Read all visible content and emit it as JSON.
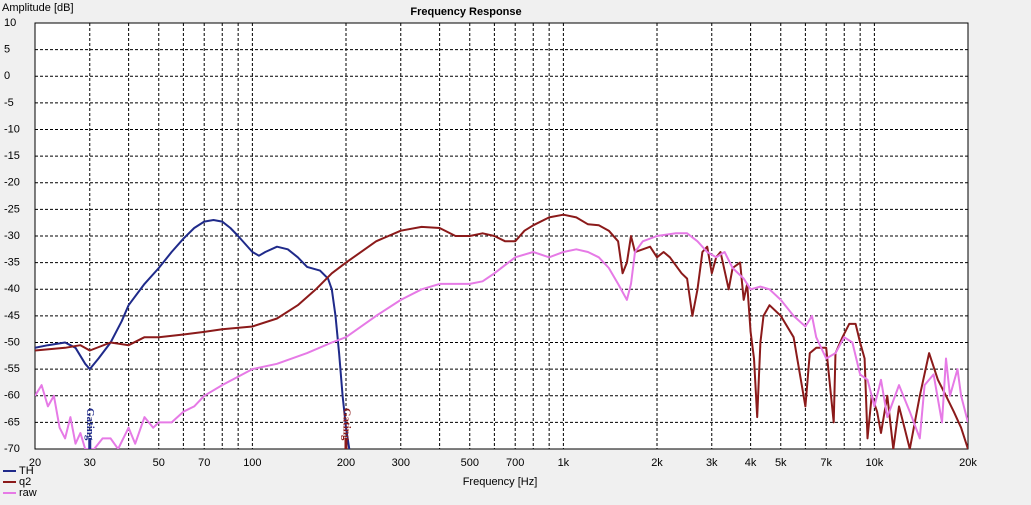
{
  "chart_data": {
    "type": "line",
    "title": "Frequency Response",
    "y_label": "Amplitude [dB]",
    "x_label": "Frequency [Hz]",
    "log_x": true,
    "grid": true,
    "legend": "bottom-left",
    "xlim": [
      20,
      20000
    ],
    "ylim": [
      -70,
      10
    ],
    "yticks": [
      10,
      5,
      0,
      -5,
      -10,
      -15,
      -20,
      -25,
      -30,
      -35,
      -40,
      -45,
      -50,
      -55,
      -60,
      -65,
      -70
    ],
    "xticks": [
      20,
      30,
      50,
      70,
      100,
      200,
      300,
      500,
      700,
      {
        "value": 1000,
        "label": "1k"
      },
      {
        "value": 2000,
        "label": "2k"
      },
      {
        "value": 3000,
        "label": "3k"
      },
      {
        "value": 4000,
        "label": "4k"
      },
      {
        "value": 5000,
        "label": "5k"
      },
      {
        "value": 7000,
        "label": "7k"
      },
      {
        "value": 10000,
        "label": "10k"
      },
      {
        "value": 20000,
        "label": "20k"
      }
    ],
    "xminor_grid": [
      40,
      60,
      80,
      90,
      400,
      600,
      800,
      900,
      6000,
      8000,
      9000
    ],
    "annotations": [
      {
        "text": "Gating",
        "x": 30,
        "color": "#1f2a8a"
      },
      {
        "text": "Gating",
        "x": 200,
        "color": "#8b1a1a"
      }
    ],
    "series": [
      {
        "name": "TH",
        "color": "#1f2a8a",
        "x": [
          20,
          22,
          25,
          27,
          29,
          30,
          32,
          35,
          38,
          40,
          45,
          50,
          55,
          60,
          65,
          70,
          75,
          80,
          85,
          90,
          100,
          105,
          110,
          120,
          130,
          140,
          150,
          165,
          175,
          180,
          185,
          190,
          195,
          200,
          205
        ],
        "values": [
          -51,
          -50.5,
          -50,
          -51,
          -54,
          -55,
          -53,
          -50,
          -46,
          -43,
          -39,
          -36,
          -33,
          -30.5,
          -28.5,
          -27.3,
          -27,
          -27.3,
          -28.5,
          -30,
          -33,
          -33.7,
          -33,
          -32,
          -32.5,
          -34,
          -35.8,
          -36.5,
          -38,
          -40,
          -45,
          -52,
          -60,
          -66,
          -70
        ]
      },
      {
        "name": "q2",
        "color": "#8b1a1a",
        "x": [
          20,
          25,
          28,
          30,
          35,
          40,
          45,
          50,
          60,
          70,
          80,
          100,
          120,
          140,
          160,
          180,
          200,
          250,
          300,
          350,
          400,
          450,
          500,
          550,
          600,
          650,
          700,
          750,
          800,
          900,
          1000,
          1100,
          1200,
          1300,
          1400,
          1500,
          1550,
          1600,
          1650,
          1700,
          1800,
          1900,
          2000,
          2100,
          2200,
          2400,
          2500,
          2600,
          2700,
          2800,
          2900,
          3000,
          3100,
          3200,
          3400,
          3500,
          3700,
          3800,
          3900,
          4000,
          4100,
          4200,
          4300,
          4400,
          4600,
          5000,
          5500,
          6000,
          6200,
          6500,
          7000,
          7400,
          7500,
          7900,
          8300,
          8700,
          9000,
          9300,
          9500,
          9800,
          10200,
          10500,
          11000,
          11500,
          12000,
          12500,
          13000,
          14000,
          15000,
          16000,
          17000,
          18000,
          19000,
          20000
        ],
        "values": [
          -51.5,
          -51,
          -50.5,
          -51.5,
          -50,
          -50.5,
          -49,
          -49,
          -48.5,
          -48,
          -47.5,
          -47,
          -45.5,
          -43,
          -40,
          -37,
          -35,
          -31,
          -29,
          -28.3,
          -28.5,
          -30,
          -30,
          -29.5,
          -30,
          -31,
          -31,
          -29,
          -28,
          -26.5,
          -26,
          -26.5,
          -27.8,
          -28,
          -29,
          -31,
          -37,
          -35,
          -30,
          -33,
          -32.5,
          -32,
          -34,
          -33,
          -34,
          -37,
          -38,
          -45,
          -40,
          -33,
          -32,
          -37,
          -34,
          -33,
          -40,
          -36,
          -35,
          -42,
          -39,
          -48,
          -53,
          -64,
          -50,
          -45,
          -43,
          -45,
          -49,
          -62,
          -52,
          -51,
          -51,
          -65,
          -52,
          -49,
          -46.5,
          -46.5,
          -50,
          -53,
          -68,
          -60,
          -63,
          -67,
          -60,
          -70,
          -62,
          -66,
          -70,
          -60,
          -52,
          -57,
          -60,
          -63,
          -66,
          -70
        ]
      },
      {
        "name": "raw",
        "color": "#e67ae6",
        "x": [
          20,
          21,
          22,
          23,
          24,
          25,
          26,
          27,
          28,
          29,
          31,
          33,
          35,
          37,
          40,
          42,
          45,
          48,
          50,
          55,
          60,
          65,
          70,
          80,
          100,
          120,
          150,
          180,
          200,
          250,
          300,
          350,
          400,
          500,
          550,
          600,
          700,
          800,
          900,
          1000,
          1100,
          1200,
          1300,
          1400,
          1500,
          1600,
          1650,
          1700,
          1800,
          2000,
          2300,
          2500,
          2700,
          2900,
          3100,
          3300,
          3500,
          3800,
          4000,
          4300,
          4600,
          5000,
          5500,
          6000,
          6300,
          6500,
          7000,
          7500,
          8000,
          8500,
          9000,
          9500,
          10000,
          10500,
          11000,
          12000,
          13000,
          14000,
          14500,
          15500,
          16500,
          17000,
          17500,
          18500,
          19000,
          20000
        ],
        "values": [
          -60,
          -58,
          -62,
          -60,
          -66,
          -68,
          -64,
          -69,
          -67,
          -70,
          -70,
          -68,
          -68,
          -70,
          -66,
          -69,
          -64,
          -66,
          -65,
          -65,
          -63,
          -62,
          -60,
          -58,
          -55,
          -54,
          -52,
          -50,
          -49,
          -45,
          -42,
          -40,
          -39,
          -39,
          -38.5,
          -37,
          -34,
          -33,
          -34,
          -33,
          -32.5,
          -33,
          -34,
          -36,
          -39,
          -42,
          -39,
          -33,
          -31,
          -30,
          -29.5,
          -29.5,
          -31,
          -33,
          -34,
          -33,
          -36,
          -38,
          -40,
          -39.5,
          -40,
          -42,
          -45,
          -47,
          -45,
          -49,
          -53,
          -52,
          -49,
          -50,
          -56,
          -57,
          -62,
          -57,
          -64,
          -58,
          -63,
          -68,
          -58,
          -56,
          -65,
          -53,
          -60,
          -55,
          -60,
          -65
        ]
      }
    ]
  }
}
